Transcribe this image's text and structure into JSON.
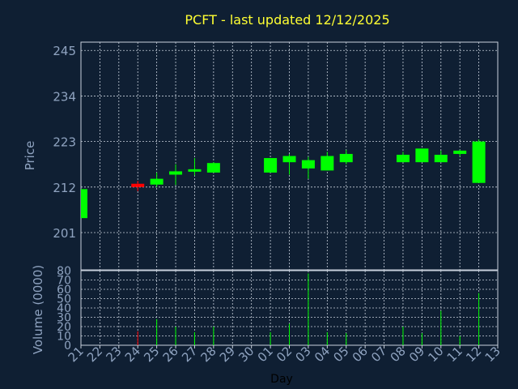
{
  "chart_data": {
    "type": "candlestick",
    "title": "PCFT - last updated 12/12/2025",
    "xlabel": "Day",
    "price_panel": {
      "ylabel": "Price",
      "ylim": [
        192,
        247
      ],
      "yticks": [
        201,
        212,
        223,
        234,
        245
      ],
      "grid": true
    },
    "volume_panel": {
      "ylabel": "Volume (0000)",
      "ylim": [
        0,
        80
      ],
      "yticks": [
        0,
        10,
        20,
        30,
        40,
        50,
        60,
        70,
        80
      ],
      "grid": true
    },
    "x_tick_labels": [
      "21",
      "22",
      "23",
      "24",
      "25",
      "26",
      "27",
      "28",
      "29",
      "30",
      "01",
      "02",
      "03",
      "04",
      "05",
      "06",
      "07",
      "08",
      "09",
      "10",
      "11",
      "12",
      "13"
    ],
    "colors": {
      "up": "#00ff00",
      "down": "#ff0000"
    },
    "candles": [
      {
        "x": 0,
        "open": 204.5,
        "high": 211.5,
        "low": 204.5,
        "close": 211.5,
        "volume": 0
      },
      {
        "x": 3,
        "open": 212.8,
        "high": 213.5,
        "low": 211.0,
        "close": 212.0,
        "volume": 15
      },
      {
        "x": 4,
        "open": 212.6,
        "high": 215.5,
        "low": 212.0,
        "close": 214.0,
        "volume": 28
      },
      {
        "x": 5,
        "open": 215.0,
        "high": 217.5,
        "low": 212.5,
        "close": 215.8,
        "volume": 20
      },
      {
        "x": 6,
        "open": 216.0,
        "high": 219.0,
        "low": 214.8,
        "close": 216.3,
        "volume": 14
      },
      {
        "x": 7,
        "open": 215.5,
        "high": 218.0,
        "low": 215.5,
        "close": 217.8,
        "volume": 20
      },
      {
        "x": 10,
        "open": 215.5,
        "high": 219.0,
        "low": 215.5,
        "close": 219.0,
        "volume": 14
      },
      {
        "x": 11,
        "open": 218.0,
        "high": 220.0,
        "low": 215.0,
        "close": 219.5,
        "volume": 23
      },
      {
        "x": 12,
        "open": 216.5,
        "high": 219.3,
        "low": 214.0,
        "close": 218.5,
        "volume": 77
      },
      {
        "x": 13,
        "open": 216.0,
        "high": 220.5,
        "low": 216.0,
        "close": 219.5,
        "volume": 14
      },
      {
        "x": 14,
        "open": 218.0,
        "high": 221.0,
        "low": 217.5,
        "close": 220.0,
        "volume": 13
      },
      {
        "x": 17,
        "open": 218.0,
        "high": 220.5,
        "low": 218.0,
        "close": 219.8,
        "volume": 20
      },
      {
        "x": 18,
        "open": 218.0,
        "high": 221.3,
        "low": 218.0,
        "close": 221.3,
        "volume": 13
      },
      {
        "x": 19,
        "open": 218.0,
        "high": 220.8,
        "low": 218.0,
        "close": 219.8,
        "volume": 37
      },
      {
        "x": 20,
        "open": 220.0,
        "high": 221.0,
        "low": 219.5,
        "close": 220.8,
        "volume": 10
      },
      {
        "x": 21,
        "open": 213.0,
        "high": 223.5,
        "low": 213.0,
        "close": 223.0,
        "volume": 56
      }
    ]
  }
}
